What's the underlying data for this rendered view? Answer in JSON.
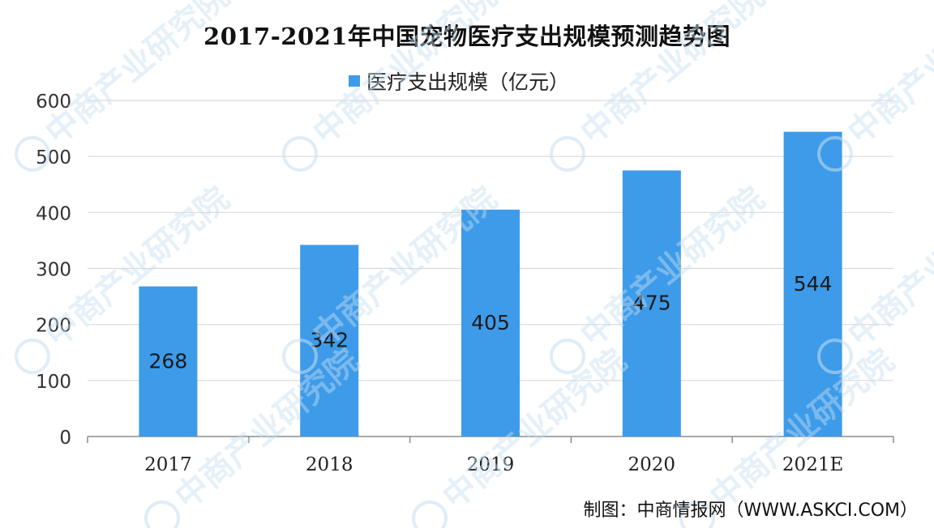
{
  "chart_data": {
    "type": "bar",
    "title": "2017-2021年中国宠物医疗支出规模预测趋势图",
    "categories": [
      "2017",
      "2018",
      "2019",
      "2020",
      "2021E"
    ],
    "series": [
      {
        "name": "医疗支出规模（亿元）",
        "values": [
          268,
          342,
          405,
          475,
          544
        ]
      }
    ],
    "data_labels": [
      "268",
      "342",
      "405",
      "475",
      "544"
    ],
    "xlabel": "",
    "ylabel": "",
    "ylim": [
      0,
      600
    ],
    "yticks": [
      "0",
      "100",
      "200",
      "300",
      "400",
      "500",
      "600"
    ],
    "grid": true,
    "legend_position": "top-center",
    "bar_color": "#3d9be9"
  },
  "source": "制图：中商情报网（WWW.ASKCI.COM）",
  "watermark": "中商产业研究院"
}
